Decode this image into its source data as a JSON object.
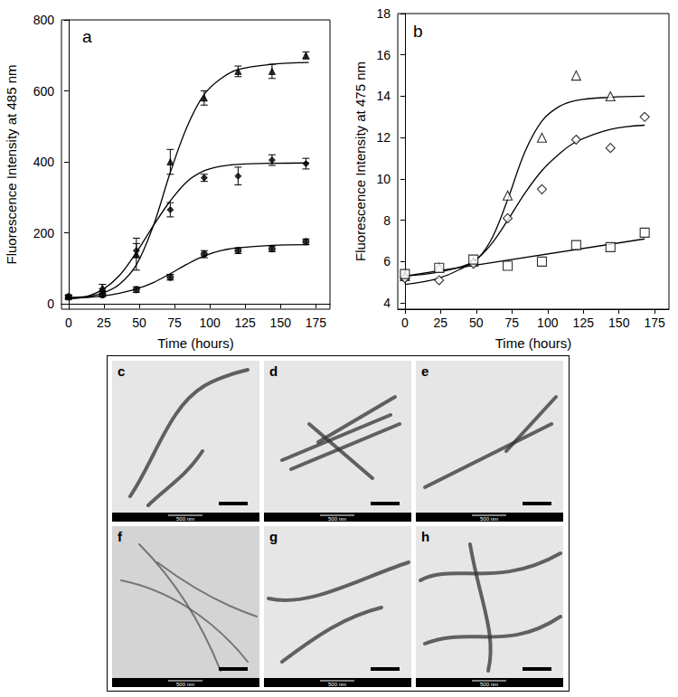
{
  "chart_data": [
    {
      "type": "scatter",
      "title": "a",
      "x_label": "Time (hours)",
      "y_label": "Fluorescence Intensity at 485 nm",
      "xlim": [
        -5,
        185
      ],
      "xticks": [
        0,
        25,
        50,
        75,
        100,
        125,
        150,
        175
      ],
      "ylim": [
        -15,
        800
      ],
      "yticks": [
        0,
        200,
        400,
        600,
        800
      ],
      "grid": false,
      "series": [
        {
          "type": "scatter",
          "marker": "triangle-filled",
          "color": "#000000",
          "x": [
            0,
            24,
            48,
            72,
            96,
            120,
            144,
            168
          ],
          "values": [
            20,
            45,
            140,
            400,
            580,
            655,
            655,
            700
          ],
          "errors": [
            5,
            10,
            45,
            35,
            20,
            15,
            20,
            10
          ]
        },
        {
          "type": "scatter",
          "marker": "diamond-filled",
          "color": "#000000",
          "x": [
            0,
            24,
            48,
            72,
            96,
            120,
            144,
            168
          ],
          "values": [
            20,
            35,
            150,
            265,
            355,
            360,
            405,
            395
          ],
          "errors": [
            5,
            8,
            20,
            20,
            10,
            25,
            15,
            15
          ]
        },
        {
          "type": "scatter",
          "marker": "circle-filled",
          "color": "#000000",
          "x": [
            0,
            24,
            48,
            72,
            96,
            120,
            144,
            168
          ],
          "values": [
            20,
            25,
            40,
            75,
            140,
            150,
            155,
            175
          ],
          "errors": [
            4,
            5,
            8,
            8,
            10,
            8,
            8,
            8
          ]
        },
        {
          "type": "line",
          "line_style": "solid",
          "color": "#000000",
          "x": [
            0,
            12,
            24,
            36,
            48,
            60,
            72,
            84,
            96,
            108,
            120,
            144,
            170
          ],
          "values": [
            18,
            20,
            30,
            55,
            110,
            220,
            370,
            500,
            590,
            635,
            660,
            675,
            680
          ]
        },
        {
          "type": "line",
          "line_style": "solid",
          "color": "#000000",
          "x": [
            0,
            12,
            24,
            36,
            48,
            60,
            72,
            84,
            96,
            108,
            120,
            144,
            170
          ],
          "values": [
            15,
            20,
            40,
            80,
            145,
            220,
            290,
            345,
            375,
            388,
            393,
            396,
            397
          ]
        },
        {
          "type": "line",
          "line_style": "solid",
          "color": "#000000",
          "x": [
            0,
            12,
            24,
            36,
            48,
            60,
            72,
            84,
            96,
            108,
            120,
            144,
            170
          ],
          "values": [
            15,
            18,
            22,
            30,
            42,
            60,
            85,
            112,
            135,
            150,
            158,
            165,
            167
          ]
        }
      ]
    },
    {
      "type": "scatter",
      "title": "b",
      "x_label": "Time (hours)",
      "y_label": "Fluorescence Intensity at 475 nm",
      "xlim": [
        -5,
        185
      ],
      "xticks": [
        0,
        25,
        50,
        75,
        100,
        125,
        150,
        175
      ],
      "ylim": [
        3.7,
        18
      ],
      "yticks": [
        4,
        6,
        8,
        10,
        12,
        14,
        16,
        18
      ],
      "grid": false,
      "series": [
        {
          "type": "scatter",
          "marker": "triangle-open",
          "color": "#000000",
          "x": [
            0,
            24,
            48,
            72,
            96,
            120,
            144
          ],
          "values": [
            5.3,
            5.7,
            6.0,
            9.2,
            12,
            15,
            14
          ]
        },
        {
          "type": "scatter",
          "marker": "diamond-open",
          "color": "#000000",
          "x": [
            0,
            24,
            48,
            72,
            96,
            120,
            144,
            168
          ],
          "values": [
            5.2,
            5.1,
            5.9,
            8.1,
            9.5,
            11.9,
            11.5,
            13
          ]
        },
        {
          "type": "scatter",
          "marker": "square-open",
          "color": "#000000",
          "x": [
            0,
            24,
            48,
            72,
            96,
            120,
            144,
            168
          ],
          "values": [
            5.4,
            5.7,
            6.1,
            5.8,
            6.0,
            6.8,
            6.7,
            7.4
          ]
        },
        {
          "type": "line",
          "line_style": "solid",
          "color": "#000000",
          "x": [
            0,
            24,
            48,
            60,
            72,
            84,
            96,
            108,
            120,
            144,
            168
          ],
          "values": [
            5.3,
            5.5,
            6.0,
            7.0,
            9.0,
            11.3,
            12.8,
            13.5,
            13.8,
            13.95,
            14
          ]
        },
        {
          "type": "line",
          "line_style": "solid",
          "color": "#000000",
          "x": [
            0,
            24,
            48,
            60,
            72,
            84,
            96,
            108,
            120,
            144,
            168
          ],
          "values": [
            4.9,
            5.2,
            6.0,
            6.8,
            8.0,
            9.3,
            10.4,
            11.2,
            11.8,
            12.4,
            12.6
          ]
        },
        {
          "type": "line",
          "line_style": "solid",
          "color": "#000000",
          "x": [
            0,
            168
          ],
          "values": [
            5.3,
            7.1
          ]
        }
      ]
    }
  ],
  "micrographs": {
    "panels": [
      {
        "label": "c",
        "scale_bar": "500 nm"
      },
      {
        "label": "d",
        "scale_bar": "500 nm"
      },
      {
        "label": "e",
        "scale_bar": "500 nm"
      },
      {
        "label": "f",
        "scale_bar": "500 nm"
      },
      {
        "label": "g",
        "scale_bar": "500 nm"
      },
      {
        "label": "h",
        "scale_bar": "500 nm"
      }
    ]
  }
}
